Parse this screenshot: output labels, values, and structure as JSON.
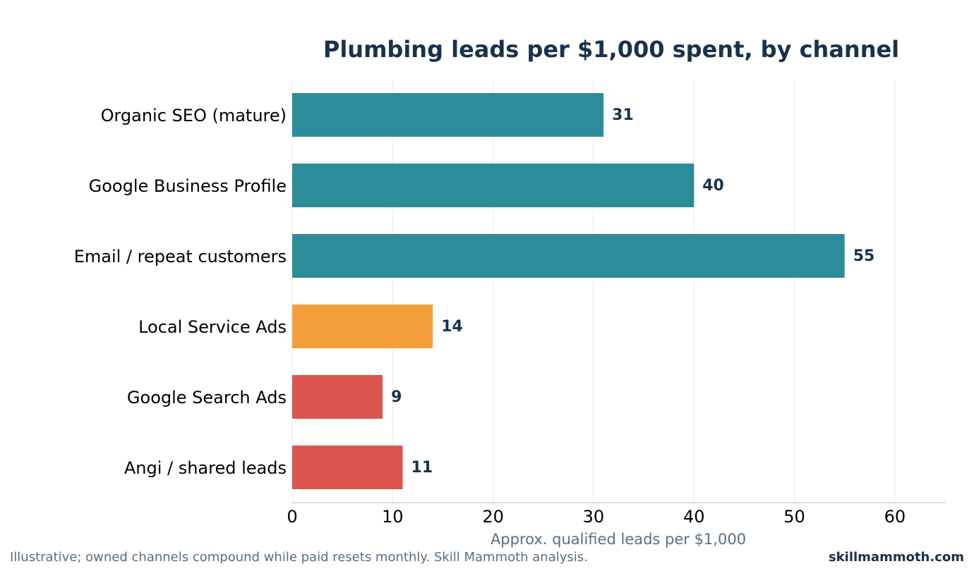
{
  "chart_data": {
    "type": "bar",
    "orientation": "horizontal",
    "title": "Plumbing leads per $1,000 spent, by channel",
    "xlabel": "Approx. qualified leads per $1,000",
    "ylabel": "",
    "xlim": [
      0,
      65
    ],
    "xticks": [
      0,
      10,
      20,
      30,
      40,
      50,
      60
    ],
    "grid": "vertical",
    "categories": [
      "Organic SEO (mature)",
      "Google Business Profile",
      "Email / repeat customers",
      "Local Service Ads",
      "Google Search Ads",
      "Angi / shared leads"
    ],
    "values": [
      31,
      40,
      55,
      14,
      9,
      11
    ],
    "bar_colors": [
      "#2d8c99",
      "#2d8c99",
      "#2d8c99",
      "#f3a03c",
      "#db554f",
      "#db554f"
    ]
  },
  "footer": {
    "note": "Illustrative; owned channels compound while paid resets monthly. Skill Mammoth analysis.",
    "brand": "skillmammoth.com"
  }
}
